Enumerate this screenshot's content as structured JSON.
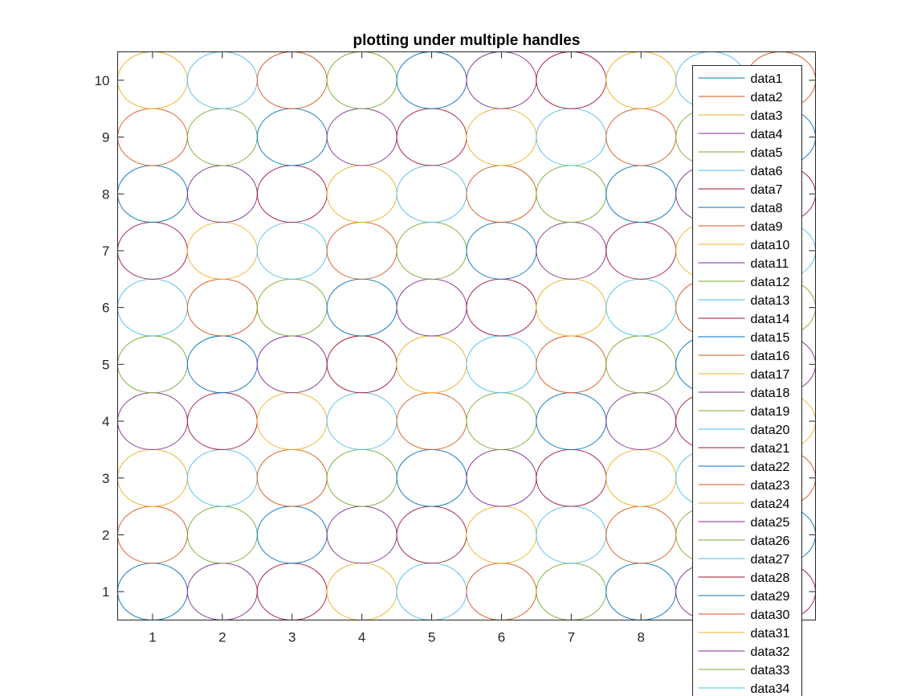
{
  "chart_data": {
    "type": "line",
    "title": "plotting under multiple handles",
    "xlabel": "",
    "ylabel": "",
    "xlim": [
      0.5,
      10.5
    ],
    "ylim": [
      0.5,
      10.5
    ],
    "x_ticks": [
      1,
      2,
      3,
      4,
      5,
      6,
      7,
      8
    ],
    "x_tick_labels": [
      "1",
      "2",
      "3",
      "4",
      "5",
      "6",
      "7",
      "8"
    ],
    "y_ticks": [
      1,
      2,
      3,
      4,
      5,
      6,
      7,
      8,
      9,
      10
    ],
    "y_tick_labels": [
      "1",
      "2",
      "3",
      "4",
      "5",
      "6",
      "7",
      "8",
      "9",
      "10"
    ],
    "grid": false,
    "legend_location": "right",
    "circle_radius": 0.5,
    "color_order": [
      "#0072BD",
      "#D95319",
      "#EDB120",
      "#7E2F8E",
      "#77AC30",
      "#4DBEEE",
      "#A2142F"
    ],
    "series_layout": "column-major: series k is a circle centred at x = floor((k-1)/10)+1, y = ((k-1) mod 10)+1; color = color_order[(k-1) mod 7]",
    "grid_columns": 10,
    "grid_rows": 10,
    "legend_entries": [
      "data1",
      "data2",
      "data3",
      "data4",
      "data5",
      "data6",
      "data7",
      "data8",
      "data9",
      "data10",
      "data11",
      "data12",
      "data13",
      "data14",
      "data15",
      "data16",
      "data17",
      "data18",
      "data19",
      "data20",
      "data21",
      "data22",
      "data23",
      "data24",
      "data25",
      "data26",
      "data27",
      "data28",
      "data29",
      "data30",
      "data31",
      "data32",
      "data33",
      "data34"
    ]
  }
}
